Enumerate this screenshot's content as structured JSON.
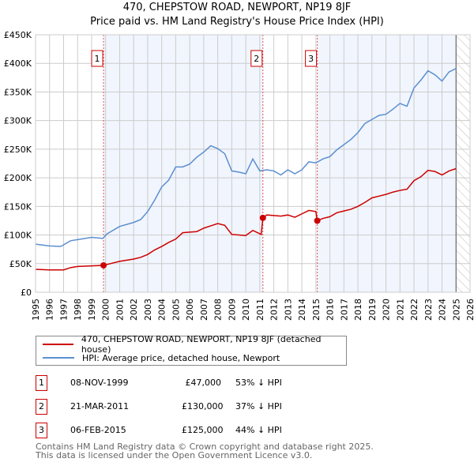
{
  "chart_data": {
    "type": "line",
    "title": "470, CHEPSTOW ROAD, NEWPORT, NP19 8JF",
    "subtitle": "Price paid vs. HM Land Registry's House Price Index (HPI)",
    "xlim": [
      1995,
      2026
    ],
    "ylim": [
      0,
      450000
    ],
    "yticks": [
      "£0",
      "£50K",
      "£100K",
      "£150K",
      "£200K",
      "£250K",
      "£300K",
      "£350K",
      "£400K",
      "£450K"
    ],
    "xticks": [
      "1995",
      "1996",
      "1997",
      "1998",
      "1999",
      "2000",
      "2001",
      "2002",
      "2003",
      "2004",
      "2005",
      "2006",
      "2007",
      "2008",
      "2009",
      "2010",
      "2011",
      "2012",
      "2013",
      "2014",
      "2015",
      "2016",
      "2017",
      "2018",
      "2019",
      "2020",
      "2021",
      "2022",
      "2023",
      "2024",
      "2025",
      "2026"
    ],
    "grid": true,
    "forecast_from": 2025.0,
    "series": [
      {
        "name": "470, CHEPSTOW ROAD, NEWPORT, NP19 8JF (detached house)",
        "color": "#cc0000",
        "x": [
          1995,
          1996,
          1997,
          1997.5,
          1998,
          1999,
          1999.85,
          2000.5,
          2001,
          2002,
          2002.5,
          2003,
          2003.5,
          2004,
          2004.5,
          2005,
          2005.5,
          2006,
          2006.5,
          2007,
          2007.5,
          2008,
          2008.5,
          2009,
          2009.5,
          2010,
          2010.5,
          2011.1,
          2011.22,
          2011.5,
          2012,
          2012.5,
          2013,
          2013.5,
          2014,
          2014.5,
          2015.0,
          2015.1,
          2015.5,
          2016,
          2016.5,
          2017,
          2017.5,
          2018,
          2018.5,
          2019,
          2019.5,
          2020,
          2020.5,
          2021,
          2021.5,
          2022,
          2022.5,
          2023,
          2023.5,
          2024,
          2024.5,
          2025
        ],
        "y": [
          40000,
          39000,
          39000,
          43000,
          45000,
          46000,
          47000,
          51000,
          54000,
          58000,
          61000,
          66000,
          74000,
          80000,
          87000,
          93000,
          104000,
          105000,
          106000,
          112000,
          116000,
          120000,
          117000,
          101000,
          100000,
          99000,
          108000,
          101000,
          130000,
          135000,
          134000,
          133000,
          135000,
          131000,
          137000,
          143000,
          141000,
          125000,
          129000,
          132000,
          139000,
          142000,
          145000,
          150000,
          157000,
          165000,
          168000,
          171000,
          175000,
          178000,
          180000,
          195000,
          202000,
          213000,
          211000,
          205000,
          212000,
          216000
        ]
      },
      {
        "name": "HPI: Average price, detached house, Newport",
        "color": "#5b8fd0",
        "x": [
          1995,
          1996,
          1996.8,
          1997.5,
          1998,
          1999,
          1999.8,
          2000.1,
          2001,
          2002,
          2002.5,
          2003,
          2003.5,
          2004,
          2004.5,
          2005,
          2005.5,
          2006,
          2006.5,
          2007,
          2007.5,
          2008,
          2008.5,
          2009,
          2009.5,
          2010,
          2010.5,
          2011,
          2011.5,
          2012,
          2012.5,
          2013,
          2013.5,
          2014,
          2014.5,
          2015,
          2015.5,
          2016,
          2016.5,
          2017,
          2017.5,
          2018,
          2018.5,
          2019,
          2019.5,
          2020,
          2020.5,
          2021,
          2021.5,
          2022,
          2022.5,
          2023,
          2023.5,
          2024,
          2024.5,
          2025
        ],
        "y": [
          84000,
          81000,
          80000,
          90000,
          92000,
          96000,
          94000,
          102000,
          115000,
          122000,
          127000,
          141000,
          161000,
          184000,
          196000,
          219000,
          219000,
          224000,
          236000,
          245000,
          256000,
          251000,
          242000,
          212000,
          210000,
          207000,
          233000,
          212000,
          214000,
          212000,
          205000,
          214000,
          207000,
          214000,
          228000,
          226000,
          233000,
          237000,
          249000,
          258000,
          267000,
          279000,
          295000,
          302000,
          309000,
          311000,
          320000,
          330000,
          325000,
          357000,
          371000,
          387000,
          380000,
          369000,
          385000,
          391000
        ]
      }
    ],
    "sales": [
      {
        "label": "1",
        "x": 1999.85,
        "price": 47000
      },
      {
        "label": "2",
        "x": 2011.22,
        "price": 130000
      },
      {
        "label": "3",
        "x": 2015.1,
        "price": 125000
      }
    ]
  },
  "legend": {
    "property": "470, CHEPSTOW ROAD, NEWPORT, NP19 8JF (detached house)",
    "hpi": "HPI: Average price, detached house, Newport"
  },
  "table": [
    {
      "num": "1",
      "date": "08-NOV-1999",
      "price": "£47,000",
      "delta": "53% ↓ HPI"
    },
    {
      "num": "2",
      "date": "21-MAR-2011",
      "price": "£130,000",
      "delta": "37% ↓ HPI"
    },
    {
      "num": "3",
      "date": "06-FEB-2015",
      "price": "£125,000",
      "delta": "44% ↓ HPI"
    }
  ],
  "footer": {
    "line1": "Contains HM Land Registry data © Crown copyright and database right 2025.",
    "line2": "This data is licensed under the Open Government Licence v3.0."
  }
}
